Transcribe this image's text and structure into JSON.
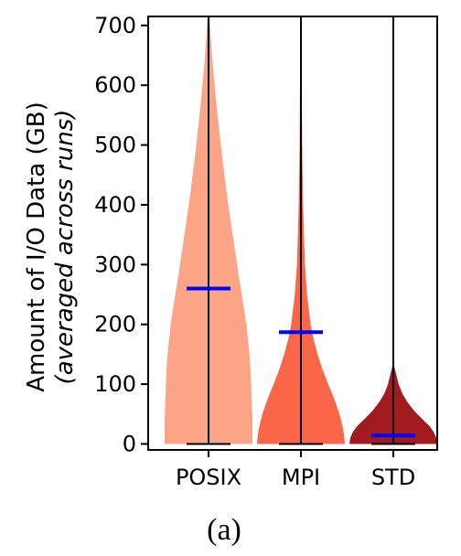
{
  "chart_data": {
    "type": "violin",
    "categories": [
      "POSIX",
      "MPI",
      "STD"
    ],
    "ylabel": "Amount of I/O Data (GB)",
    "ylabel_sub": "(averaged across runs)",
    "ylim": [
      -10,
      715
    ],
    "yticks": [
      0,
      100,
      200,
      300,
      400,
      500,
      600,
      700
    ],
    "caption": "(a)",
    "colors": {
      "POSIX": "#fca486",
      "MPI": "#fb6649",
      "STD": "#a11b1f",
      "mean": "#0000ff",
      "line": "#000000"
    },
    "series": [
      {
        "category": "POSIX",
        "min": 0,
        "max": 715,
        "mean": 260,
        "density": [
          [
            0,
            1.0
          ],
          [
            40,
            1.0
          ],
          [
            80,
            0.98
          ],
          [
            120,
            0.96
          ],
          [
            160,
            0.92
          ],
          [
            200,
            0.86
          ],
          [
            240,
            0.78
          ],
          [
            280,
            0.69
          ],
          [
            320,
            0.61
          ],
          [
            360,
            0.53
          ],
          [
            400,
            0.45
          ],
          [
            440,
            0.38
          ],
          [
            480,
            0.31
          ],
          [
            520,
            0.25
          ],
          [
            560,
            0.19
          ],
          [
            600,
            0.14
          ],
          [
            640,
            0.09
          ],
          [
            680,
            0.05
          ],
          [
            715,
            0.02
          ]
        ]
      },
      {
        "category": "MPI",
        "min": 0,
        "max": 715,
        "mean": 187,
        "density": [
          [
            0,
            1.0
          ],
          [
            10,
            0.99
          ],
          [
            25,
            0.96
          ],
          [
            50,
            0.88
          ],
          [
            75,
            0.76
          ],
          [
            100,
            0.62
          ],
          [
            125,
            0.49
          ],
          [
            150,
            0.38
          ],
          [
            175,
            0.29
          ],
          [
            200,
            0.22
          ],
          [
            250,
            0.14
          ],
          [
            300,
            0.09
          ],
          [
            400,
            0.05
          ],
          [
            500,
            0.03
          ],
          [
            600,
            0.02
          ],
          [
            715,
            0.01
          ]
        ]
      },
      {
        "category": "STD",
        "min": 0,
        "max": 715,
        "mean": 14,
        "density": [
          [
            0,
            1.0
          ],
          [
            10,
            0.98
          ],
          [
            20,
            0.92
          ],
          [
            30,
            0.82
          ],
          [
            40,
            0.68
          ],
          [
            55,
            0.48
          ],
          [
            70,
            0.32
          ],
          [
            85,
            0.2
          ],
          [
            100,
            0.12
          ],
          [
            115,
            0.07
          ],
          [
            130,
            0.02
          ],
          [
            135,
            0.0
          ]
        ]
      }
    ]
  }
}
